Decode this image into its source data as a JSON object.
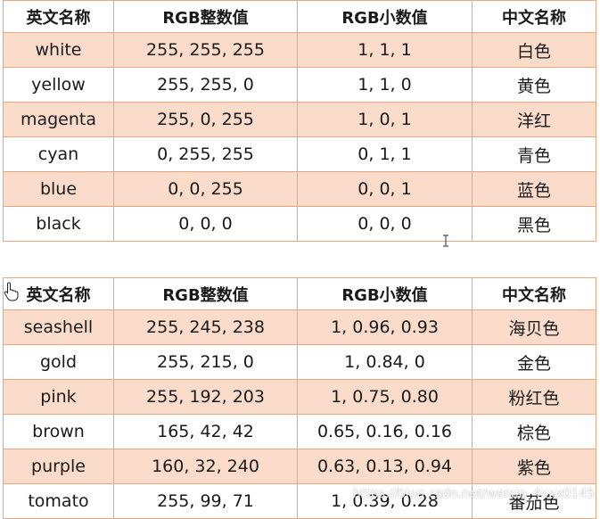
{
  "colors": {
    "odd_row_bg": "#fbdccb",
    "border": "#e8a77c"
  },
  "headers": {
    "english": "英文名称",
    "rgb_int": "RGB整数值",
    "rgb_dec": "RGB小数值",
    "chinese": "中文名称"
  },
  "table1": {
    "rows": [
      {
        "english": "white",
        "rgb_int": "255, 255, 255",
        "rgb_dec": "1, 1, 1",
        "chinese": "白色"
      },
      {
        "english": "yellow",
        "rgb_int": "255, 255, 0",
        "rgb_dec": "1, 1, 0",
        "chinese": "黄色"
      },
      {
        "english": "magenta",
        "rgb_int": "255, 0, 255",
        "rgb_dec": "1, 0, 1",
        "chinese": "洋红"
      },
      {
        "english": "cyan",
        "rgb_int": "0, 255, 255",
        "rgb_dec": "0, 1, 1",
        "chinese": "青色"
      },
      {
        "english": "blue",
        "rgb_int": "0, 0, 255",
        "rgb_dec": "0, 0, 1",
        "chinese": "蓝色"
      },
      {
        "english": "black",
        "rgb_int": "0, 0, 0",
        "rgb_dec": "0, 0, 0",
        "chinese": "黑色"
      }
    ]
  },
  "table2": {
    "rows": [
      {
        "english": "seashell",
        "rgb_int": "255, 245, 238",
        "rgb_dec": "1, 0.96, 0.93",
        "chinese": "海贝色"
      },
      {
        "english": "gold",
        "rgb_int": "255, 215, 0",
        "rgb_dec": "1, 0.84, 0",
        "chinese": "金色"
      },
      {
        "english": "pink",
        "rgb_int": "255, 192, 203",
        "rgb_dec": "1, 0.75, 0.80",
        "chinese": "粉红色"
      },
      {
        "english": "brown",
        "rgb_int": "165, 42, 42",
        "rgb_dec": "0.65, 0.16, 0.16",
        "chinese": "棕色"
      },
      {
        "english": "purple",
        "rgb_int": "160, 32, 240",
        "rgb_dec": "0.63, 0.13, 0.94",
        "chinese": "紫色"
      },
      {
        "english": "tomato",
        "rgb_int": "255, 99, 71",
        "rgb_dec": "1, 0.39, 0.28",
        "chinese": "番茄色"
      }
    ]
  },
  "watermark": "https://blog.csdn.net/weixin_4xxx0145"
}
